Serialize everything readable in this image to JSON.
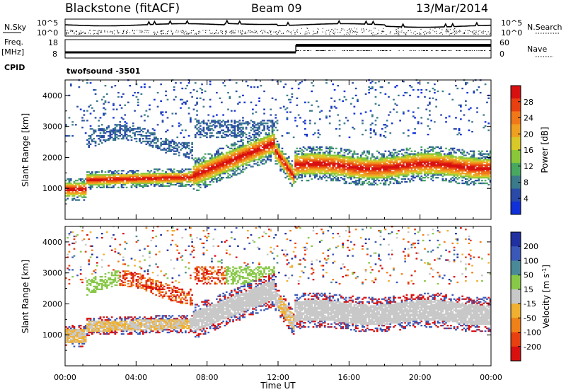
{
  "header": {
    "station": "Blackstone (fitACF)",
    "beam": "Beam 09",
    "date": "13/Mar/2014"
  },
  "noise_panel": {
    "left_label": "N.Sky",
    "left_ticks": [
      "10^5",
      "10^0"
    ],
    "right_label": "N.Search",
    "right_ticks": [
      "10^5",
      "10^0"
    ]
  },
  "freq_panel": {
    "left_label_top": "Freq.",
    "left_label_unit": "[MHz]",
    "left_ticks": [
      "18",
      "8"
    ],
    "right_label": "Nave",
    "right_ticks": [
      "60",
      "0"
    ],
    "cpid_label": "CPID",
    "cpid_value": "twofsound -3501"
  },
  "chart_data": [
    {
      "type": "heatmap",
      "name": "power",
      "ylabel": "Slant Range [km]",
      "ylim": [
        0,
        4500
      ],
      "yticks": [
        "1000",
        "2000",
        "3000",
        "4000"
      ],
      "colorbar": {
        "label": "Power [dB]",
        "ticks": [
          "4",
          "8",
          "12",
          "16",
          "20",
          "24",
          "28"
        ],
        "colors": [
          "#1030d8",
          "#2a4aa8",
          "#3a7a8a",
          "#48a860",
          "#8ac83a",
          "#d8c828",
          "#f0a020",
          "#f07818",
          "#e84010",
          "#d81010"
        ]
      }
    },
    {
      "type": "heatmap",
      "name": "velocity",
      "ylabel": "Slant Range [km]",
      "ylim": [
        0,
        4500
      ],
      "yticks": [
        "1000",
        "2000",
        "3000",
        "4000"
      ],
      "xlabel": "Time UT",
      "xticks": [
        "00:00",
        "04:00",
        "08:00",
        "12:00",
        "16:00",
        "20:00",
        "00:00"
      ],
      "colorbar": {
        "label": "Velocity [m s^-1]",
        "ticks": [
          "200",
          "100",
          "50",
          "15",
          "-15",
          "-50",
          "-100",
          "-200"
        ],
        "colors": [
          "#2030a0",
          "#3a58b8",
          "#4a8a98",
          "#88c848",
          "#c8c8c8",
          "#f0b030",
          "#f08018",
          "#e84010",
          "#d81010"
        ]
      }
    }
  ]
}
